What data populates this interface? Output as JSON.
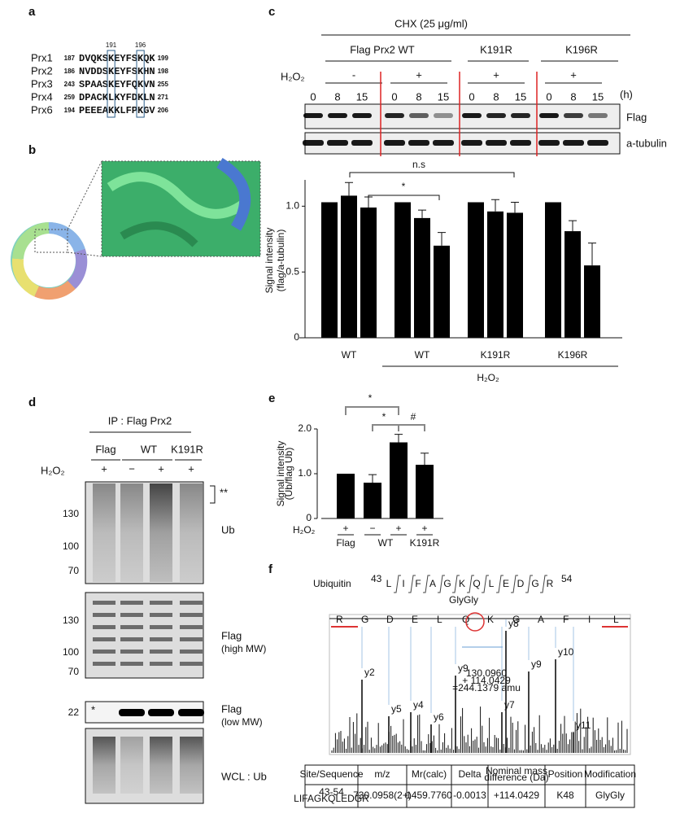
{
  "panel_labels": [
    "a",
    "b",
    "c",
    "d",
    "e",
    "f"
  ],
  "a": {
    "markers": [
      "191",
      "196"
    ],
    "rows": [
      {
        "name": "Prx1",
        "start": 187,
        "sequence": "DVQKSKEYFSKQK",
        "end": 199
      },
      {
        "name": "Prx2",
        "start": 186,
        "sequence": "NVDDSKEYFSKHN",
        "end": 198
      },
      {
        "name": "Prx3",
        "start": 243,
        "sequence": "SPAASKEYFQKVN",
        "end": 255
      },
      {
        "name": "Prx4",
        "start": 259,
        "sequence": "DPACKLKYFDKLN",
        "end": 271
      },
      {
        "name": "Prx6",
        "start": 194,
        "sequence": "PEEEAKKLFPKGV",
        "end": 206
      }
    ]
  },
  "c_blot": {
    "treatment": "CHX (25 μg/ml)",
    "groups": [
      "Flag Prx2 WT",
      "K191R",
      "K196R"
    ],
    "h2o2_label": "H₂O₂",
    "h2o2": [
      "-",
      "+",
      "+",
      "+"
    ],
    "times": [
      "0",
      "8",
      "15"
    ],
    "time_unit": "(h)",
    "blots": [
      "Flag",
      "a-tubulin"
    ]
  },
  "d": {
    "ip": "IP : Flag Prx2",
    "lanes": [
      "Flag",
      "WT",
      "K191R"
    ],
    "h2o2_label": "H₂O₂",
    "h2o2": [
      "+",
      "−",
      "+",
      "+"
    ],
    "blots": [
      {
        "markers": [
          130,
          100,
          70
        ],
        "label": "Ub",
        "note": "**"
      },
      {
        "markers": [
          130,
          100,
          70
        ],
        "label": "Flag",
        "sublabel": "(high MW)"
      },
      {
        "markers": [
          22
        ],
        "label": "Flag",
        "sublabel": "(low MW)",
        "note": "*"
      },
      {
        "label": "WCL : Ub"
      }
    ]
  },
  "f": {
    "protein": "Ubiquitin",
    "start": 43,
    "end": 54,
    "sequence": [
      "L",
      "I",
      "F",
      "A",
      "G",
      "K",
      "Q",
      "L",
      "E",
      "D",
      "G",
      "R"
    ],
    "modification_label": "GlyGly",
    "ion_labels": [
      "R",
      "G",
      "D",
      "E",
      "L",
      "Q",
      "K",
      "G",
      "A",
      "F",
      "I",
      "L"
    ],
    "peak_labels": [
      "y2",
      "y5",
      "y4",
      "y6",
      "y9",
      "y7",
      "y8",
      "y9",
      "y10",
      "y11"
    ],
    "annotation": [
      "130.0960",
      "+ 114.0429",
      "=244.1379 amu"
    ],
    "table": {
      "header": [
        [
          "Site/Sequence"
        ],
        [
          "m/z"
        ],
        [
          "Mr(calc)"
        ],
        [
          "Delta"
        ],
        [
          "Nominal mass",
          "difference (Da)"
        ],
        [
          "Position"
        ],
        [
          "Modification"
        ]
      ],
      "rows": [
        [
          [
            "43-54",
            "LIFAGKQLEDGR"
          ],
          [
            "730.0958(2+)"
          ],
          [
            "1459.7760"
          ],
          [
            "-0.0013"
          ],
          [
            "+114.0429"
          ],
          [
            "K48"
          ],
          [
            "GlyGly"
          ]
        ]
      ]
    }
  },
  "chart_data": [
    {
      "type": "bar",
      "y_label": [
        "Signal intensity",
        "(flag/a-tubulin)"
      ],
      "ylim": [
        0,
        1.2
      ],
      "yticks": [
        0,
        0.5,
        {
          "value": 1,
          "label": "1.0"
        }
      ],
      "color": "#000000",
      "groups": [
        {
          "name": "WT",
          "values": [
            1.03,
            1.08,
            0.99
          ],
          "errors": [
            0,
            0.1,
            0.08
          ]
        },
        {
          "name": "WT",
          "values": [
            1.03,
            0.91,
            0.7
          ],
          "errors": [
            0,
            0.06,
            0.1
          ]
        },
        {
          "name": "K191R",
          "values": [
            1.03,
            0.96,
            0.95
          ],
          "errors": [
            0,
            0.09,
            0.08
          ]
        },
        {
          "name": "K196R",
          "values": [
            1.03,
            0.81,
            0.55
          ],
          "errors": [
            0,
            0.08,
            0.17
          ]
        }
      ],
      "x_note": "H₂O₂",
      "annotations": [
        "*",
        "n.s"
      ]
    },
    {
      "type": "bar",
      "y_label": [
        "Signal intensity",
        "(Ub/flag Ub)"
      ],
      "ylim": [
        0,
        2
      ],
      "yticks": [
        0,
        {
          "value": 1,
          "label": "1.0"
        },
        {
          "value": 2,
          "label": "2.0"
        }
      ],
      "color": "#000000",
      "values": [
        1.0,
        0.8,
        1.7,
        1.2
      ],
      "errors": [
        0,
        0.18,
        0.18,
        0.26
      ],
      "h2o2_label": "H₂O₂",
      "h2o2": [
        "+",
        "−",
        "+",
        "+"
      ],
      "x_labels": [
        "Flag",
        "WT",
        "K191R"
      ],
      "annotations": [
        "*",
        "*",
        "#"
      ]
    }
  ]
}
